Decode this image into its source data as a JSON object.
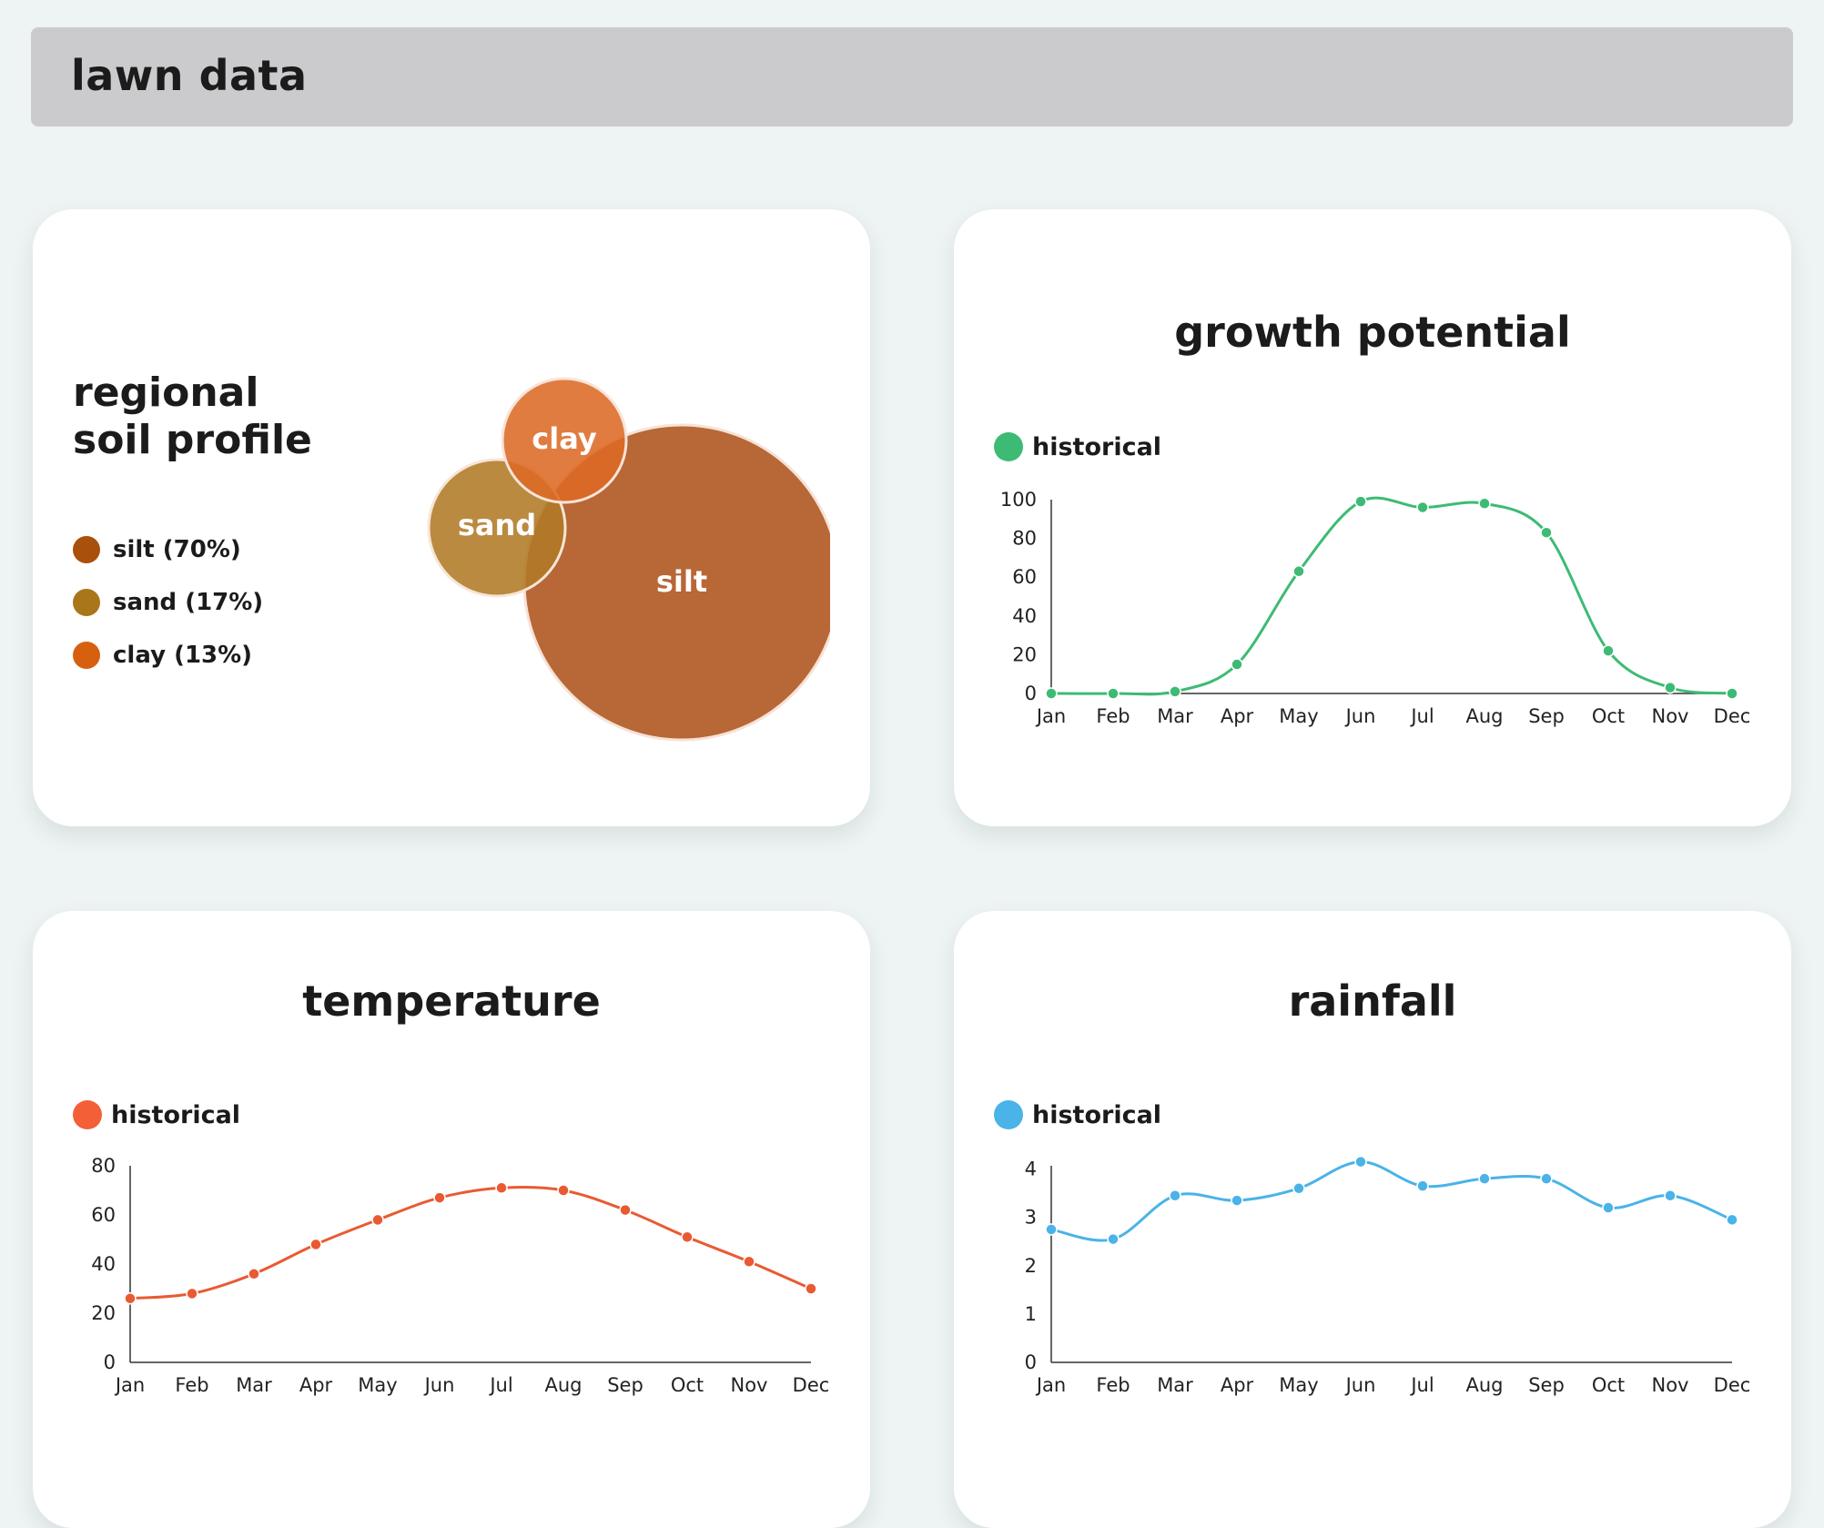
{
  "header": {
    "title": "lawn data"
  },
  "soil": {
    "title_line1": "regional",
    "title_line2": "soil profile",
    "legend": [
      {
        "label": "silt (70%)",
        "color": "#a9500d"
      },
      {
        "label": "sand (17%)",
        "color": "#a9761a"
      },
      {
        "label": "clay (13%)",
        "color": "#d7600f"
      }
    ],
    "circles": [
      {
        "label": "silt",
        "color": "#b35b27"
      },
      {
        "label": "sand",
        "color": "#b07a27"
      },
      {
        "label": "clay",
        "color": "#dd6a25"
      }
    ]
  },
  "chart_data": [
    {
      "type": "venn",
      "title": "regional\nsoil profile",
      "sets": [
        {
          "name": "silt",
          "percent": 70
        },
        {
          "name": "sand",
          "percent": 17
        },
        {
          "name": "clay",
          "percent": 13
        }
      ]
    },
    {
      "type": "line",
      "title": "growth potential",
      "categories": [
        "Jan",
        "Feb",
        "Mar",
        "Apr",
        "May",
        "Jun",
        "Jul",
        "Aug",
        "Sep",
        "Oct",
        "Nov",
        "Dec"
      ],
      "series": [
        {
          "name": "historical",
          "color": "#3dbb74",
          "values": [
            0,
            0,
            1,
            15,
            63,
            99,
            96,
            98,
            83,
            22,
            3,
            0
          ]
        }
      ],
      "ylim": [
        0,
        100
      ],
      "yticks": [
        0,
        20,
        40,
        60,
        80,
        100
      ]
    },
    {
      "type": "line",
      "title": "temperature",
      "categories": [
        "Jan",
        "Feb",
        "Mar",
        "Apr",
        "May",
        "Jun",
        "Jul",
        "Aug",
        "Sep",
        "Oct",
        "Nov",
        "Dec"
      ],
      "series": [
        {
          "name": "historical",
          "color": "#e95a32",
          "values": [
            26,
            28,
            36,
            48,
            58,
            67,
            71,
            70,
            62,
            51,
            41,
            30
          ]
        }
      ],
      "ylim": [
        0,
        80
      ],
      "yticks": [
        0,
        20,
        40,
        60,
        80
      ]
    },
    {
      "type": "line",
      "title": "rainfall",
      "categories": [
        "Jan",
        "Feb",
        "Mar",
        "Apr",
        "May",
        "Jun",
        "Jul",
        "Aug",
        "Sep",
        "Oct",
        "Nov",
        "Dec"
      ],
      "series": [
        {
          "name": "historical",
          "color": "#4ab3e8",
          "values": [
            2.75,
            2.55,
            3.45,
            3.35,
            3.6,
            4.15,
            3.65,
            3.8,
            3.8,
            3.2,
            3.45,
            2.95
          ]
        }
      ],
      "ylim": [
        0,
        4.5
      ],
      "yticks": [
        0,
        1,
        2,
        3,
        4
      ]
    }
  ]
}
